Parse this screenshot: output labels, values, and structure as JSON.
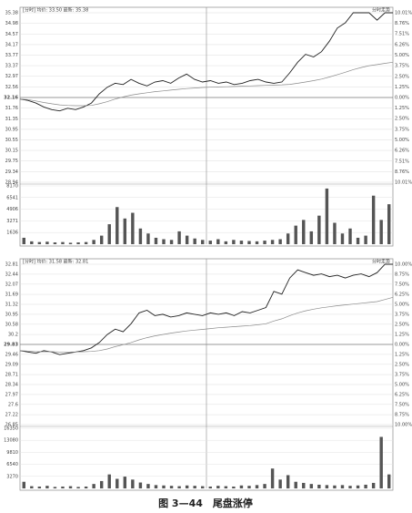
{
  "chart_data": [
    {
      "type": "line",
      "header": "[分时] 均价: 33.50 最新: 35.38",
      "header_right": "分时走势",
      "ylim": [
        28.94,
        35.38
      ],
      "yticks": [
        35.38,
        34.98,
        34.57,
        34.17,
        33.77,
        33.37,
        32.97,
        32.56,
        32.16,
        31.76,
        31.35,
        30.95,
        30.55,
        30.15,
        29.75,
        29.34,
        28.94
      ],
      "y2lim": [
        -10.01,
        10.01
      ],
      "y2ticks": [
        {
          "value": 10.01,
          "label": "10.01%"
        },
        {
          "value": 8.76,
          "label": "8.76%"
        },
        {
          "value": 7.51,
          "label": "7.51%"
        },
        {
          "value": 6.26,
          "label": "6.26%"
        },
        {
          "value": 5.0,
          "label": "5.00%"
        },
        {
          "value": 3.75,
          "label": "3.75%"
        },
        {
          "value": 2.5,
          "label": "2.50%"
        },
        {
          "value": 1.25,
          "label": "1.25%"
        },
        {
          "value": 0,
          "label": "0.00%"
        },
        {
          "value": -1.25,
          "label": "1.25%"
        },
        {
          "value": -2.5,
          "label": "2.50%"
        },
        {
          "value": -3.75,
          "label": "3.75%"
        },
        {
          "value": -5.0,
          "label": "5.00%"
        },
        {
          "value": -6.26,
          "label": "6.26%"
        },
        {
          "value": -7.51,
          "label": "7.51%"
        },
        {
          "value": -8.76,
          "label": "8.76%"
        },
        {
          "value": -10.01,
          "label": "10.01%"
        }
      ],
      "series": [
        {
          "color": "#222222",
          "values": [
            32.1,
            32.05,
            31.95,
            31.8,
            31.7,
            31.65,
            31.75,
            31.7,
            31.8,
            31.95,
            32.3,
            32.55,
            32.7,
            32.65,
            32.85,
            32.7,
            32.6,
            32.75,
            32.8,
            32.7,
            32.9,
            33.05,
            32.85,
            32.75,
            32.8,
            32.7,
            32.75,
            32.65,
            32.7,
            32.8,
            32.85,
            32.75,
            32.7,
            32.75,
            33.1,
            33.5,
            33.8,
            33.7,
            33.9,
            34.3,
            34.8,
            35.0,
            35.38,
            35.38,
            35.38,
            35.1,
            35.38,
            35.38
          ]
        },
        {
          "color": "#8a8a8a",
          "values": [
            32.1,
            32.08,
            32.03,
            31.97,
            31.92,
            31.88,
            31.86,
            31.85,
            31.85,
            31.86,
            31.92,
            32.0,
            32.1,
            32.18,
            32.25,
            32.3,
            32.34,
            32.38,
            32.41,
            32.44,
            32.47,
            32.5,
            32.52,
            32.54,
            32.55,
            32.56,
            32.57,
            32.58,
            32.59,
            32.6,
            32.61,
            32.62,
            32.63,
            32.64,
            32.66,
            32.7,
            32.75,
            32.8,
            32.86,
            32.94,
            33.03,
            33.12,
            33.22,
            33.3,
            33.37,
            33.41,
            33.46,
            33.5
          ]
        }
      ],
      "volume": {
        "color": "#555555",
        "ylim": [
          0,
          8170
        ],
        "yticks": [
          1636,
          3271,
          4906,
          6541,
          8170
        ],
        "values": [
          900,
          400,
          300,
          350,
          250,
          300,
          200,
          250,
          300,
          600,
          1200,
          2800,
          5200,
          3600,
          4400,
          2200,
          1500,
          900,
          700,
          600,
          1800,
          1200,
          800,
          600,
          500,
          700,
          400,
          600,
          500,
          450,
          400,
          500,
          600,
          700,
          1500,
          2600,
          3400,
          1800,
          4000,
          7800,
          3000,
          1500,
          2200,
          900,
          1200,
          6800,
          3400,
          5600
        ]
      }
    },
    {
      "type": "line",
      "header": "[分时] 均价: 31.58 最新: 32.81",
      "header_right": "分时走势",
      "ylim": [
        26.85,
        32.81
      ],
      "yticks": [
        32.81,
        32.44,
        32.07,
        31.69,
        31.32,
        30.95,
        30.58,
        30.2,
        29.83,
        29.46,
        29.09,
        28.71,
        28.34,
        27.97,
        27.6,
        27.22,
        26.85
      ],
      "y2lim": [
        -10.0,
        10.0
      ],
      "y2ticks": [
        {
          "value": 10.0,
          "label": "10.00%"
        },
        {
          "value": 8.75,
          "label": "8.75%"
        },
        {
          "value": 7.5,
          "label": "7.50%"
        },
        {
          "value": 6.25,
          "label": "6.25%"
        },
        {
          "value": 5.0,
          "label": "5.00%"
        },
        {
          "value": 3.75,
          "label": "3.75%"
        },
        {
          "value": 2.5,
          "label": "2.50%"
        },
        {
          "value": 1.25,
          "label": "1.25%"
        },
        {
          "value": 0,
          "label": "0.00%"
        },
        {
          "value": -1.25,
          "label": "1.25%"
        },
        {
          "value": -2.5,
          "label": "2.50%"
        },
        {
          "value": -3.75,
          "label": "3.75%"
        },
        {
          "value": -5.0,
          "label": "5.00%"
        },
        {
          "value": -6.25,
          "label": "6.25%"
        },
        {
          "value": -7.5,
          "label": "7.50%"
        },
        {
          "value": -8.75,
          "label": "8.75%"
        },
        {
          "value": -10.0,
          "label": "10.00%"
        }
      ],
      "series": [
        {
          "color": "#222222",
          "values": [
            29.6,
            29.55,
            29.5,
            29.6,
            29.55,
            29.45,
            29.5,
            29.55,
            29.6,
            29.7,
            29.9,
            30.2,
            30.4,
            30.3,
            30.6,
            31.0,
            31.1,
            30.9,
            30.95,
            30.85,
            30.9,
            31.0,
            30.95,
            30.9,
            31.0,
            30.95,
            31.0,
            30.9,
            31.05,
            31.0,
            31.1,
            31.2,
            31.8,
            31.7,
            32.3,
            32.6,
            32.5,
            32.4,
            32.45,
            32.35,
            32.4,
            32.3,
            32.4,
            32.45,
            32.35,
            32.5,
            32.81,
            32.81
          ]
        },
        {
          "color": "#8a8a8a",
          "values": [
            29.6,
            29.58,
            29.56,
            29.56,
            29.56,
            29.55,
            29.55,
            29.55,
            29.56,
            29.57,
            29.6,
            29.66,
            29.75,
            29.82,
            29.9,
            30.0,
            30.08,
            30.15,
            30.2,
            30.25,
            30.29,
            30.33,
            30.36,
            30.39,
            30.42,
            30.45,
            30.47,
            30.49,
            30.51,
            30.53,
            30.56,
            30.6,
            30.7,
            30.78,
            30.9,
            31.0,
            31.08,
            31.14,
            31.19,
            31.23,
            31.27,
            31.3,
            31.33,
            31.36,
            31.39,
            31.42,
            31.5,
            31.58
          ]
        }
      ],
      "volume": {
        "color": "#555555",
        "ylim": [
          0,
          16350
        ],
        "yticks": [
          3270,
          6540,
          9810,
          13080,
          16350
        ],
        "values": [
          1800,
          600,
          500,
          700,
          400,
          500,
          600,
          400,
          500,
          1200,
          2000,
          3800,
          2600,
          3200,
          2400,
          1600,
          1200,
          900,
          800,
          700,
          600,
          800,
          700,
          600,
          500,
          700,
          600,
          500,
          800,
          700,
          900,
          1200,
          5400,
          2400,
          3600,
          1800,
          1500,
          1200,
          1000,
          900,
          800,
          900,
          700,
          800,
          1000,
          1500,
          14000,
          3800
        ]
      }
    }
  ],
  "caption": "图 3—44　尾盘涨停"
}
